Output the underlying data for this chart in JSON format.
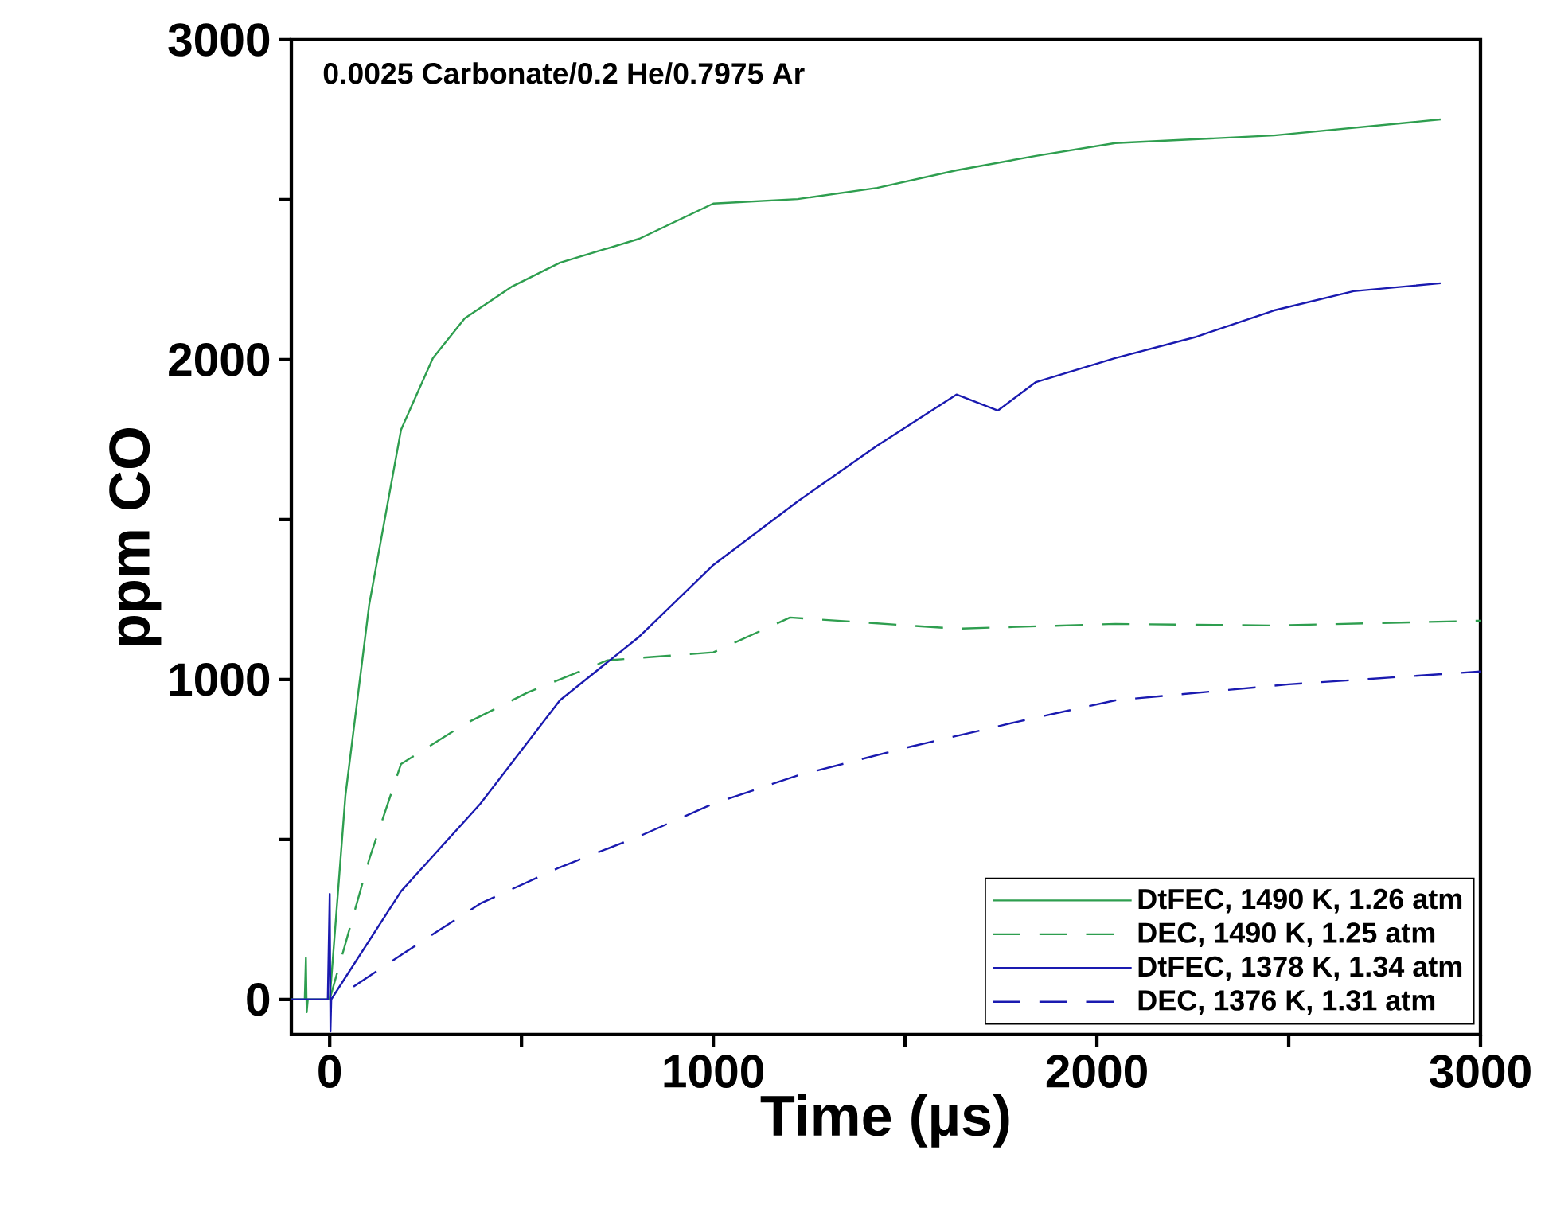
{
  "chart_data": {
    "type": "line",
    "annotations": [
      "0.0025 Carbonate/0.2 He/0.7975 Ar"
    ],
    "xlabel": "Time (µs)",
    "ylabel": "ppm CO",
    "xlim": [
      -100,
      3000
    ],
    "ylim": [
      -110,
      3000
    ],
    "xticks": [
      0,
      {
        "value": 500,
        "label": null
      },
      1000,
      {
        "value": 1500,
        "label": null
      },
      2000,
      {
        "value": 2500,
        "label": null
      },
      3000
    ],
    "yticks": [
      0,
      {
        "value": 500,
        "label": null
      },
      1000,
      {
        "value": 1500,
        "label": null
      },
      2000,
      {
        "value": 2500,
        "label": null
      },
      3000
    ],
    "legend": "bottom right",
    "series": [
      {
        "name": "DtFEC, 1490 K, 1.26 atm",
        "color": "#2e9e4f",
        "line_style": "solid",
        "x": [
          -100,
          -65,
          -62,
          -60,
          -57,
          -5,
          0,
          41,
          103,
          186,
          269,
          352,
          476,
          600,
          807,
          1000,
          1220,
          1427,
          1634,
          1841,
          2048,
          2462,
          2896
        ],
        "values": [
          0,
          0,
          130,
          -40,
          0,
          0,
          0,
          637,
          1234,
          1781,
          2005,
          2129,
          2229,
          2303,
          2378,
          2488,
          2502,
          2537,
          2592,
          2637,
          2677,
          2701,
          2751
        ]
      },
      {
        "name": "DEC, 1490 K, 1.25 atm",
        "color": "#2e9e4f",
        "line_style": "dashed",
        "x": [
          0,
          103,
          186,
          352,
          517,
          724,
          1000,
          1200,
          1634,
          2048,
          2462,
          3000
        ],
        "values": [
          0,
          438,
          736,
          861,
          960,
          1060,
          1085,
          1194,
          1159,
          1174,
          1169,
          1184
        ]
      },
      {
        "name": "DtFEC, 1378 K, 1.34 atm",
        "color": "#1a1ab0",
        "line_style": "solid",
        "x": [
          -100,
          -5,
          0,
          2,
          4,
          186,
          393,
          600,
          807,
          1000,
          1220,
          1427,
          1634,
          1742,
          1841,
          2048,
          2255,
          2462,
          2669,
          2896
        ],
        "values": [
          0,
          0,
          330,
          -100,
          0,
          338,
          612,
          935,
          1134,
          1358,
          1557,
          1731,
          1891,
          1841,
          1930,
          2005,
          2070,
          2154,
          2214,
          2239
        ]
      },
      {
        "name": "DEC, 1376 K, 1.31 atm",
        "color": "#1a1ab0",
        "line_style": "dashed",
        "x": [
          62,
          186,
          393,
          600,
          807,
          1000,
          1220,
          1500,
          1800,
          2048,
          2500,
          3000
        ],
        "values": [
          40,
          139,
          300,
          413,
          510,
          612,
          700,
          786,
          870,
          935,
          985,
          1025
        ]
      }
    ]
  }
}
